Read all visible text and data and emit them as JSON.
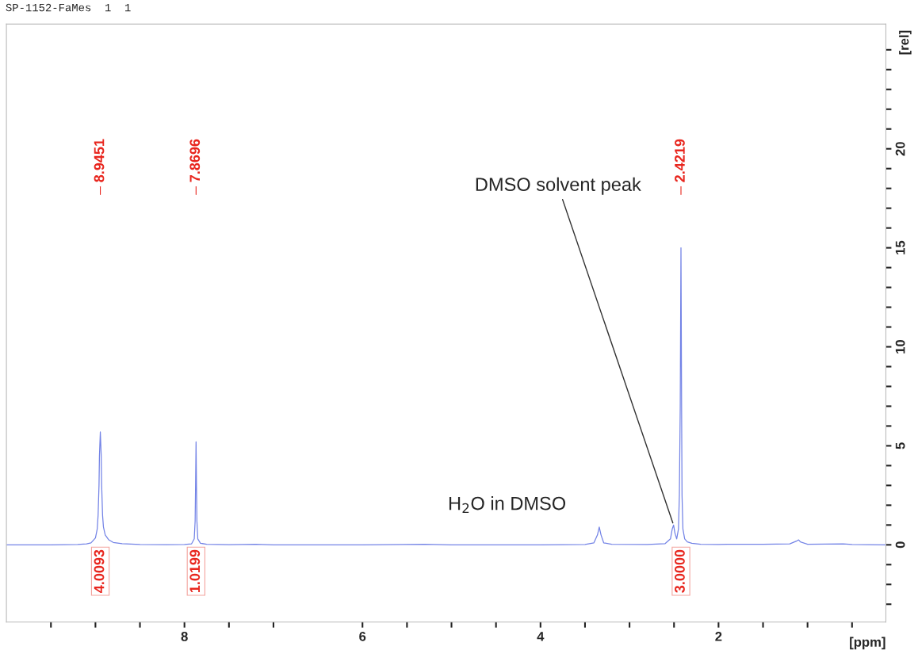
{
  "chart_data": {
    "type": "line",
    "title": "SP-1152-FaMes  1  1",
    "xlabel": "[ppm]",
    "ylabel": "[rel]",
    "x": [
      10.0,
      9.5,
      9.2,
      9.1,
      9.05,
      9.0,
      8.98,
      8.97,
      8.96,
      8.955,
      8.9451,
      8.935,
      8.93,
      8.92,
      8.91,
      8.89,
      8.85,
      8.8,
      8.7,
      8.5,
      8.2,
      8.0,
      7.92,
      7.89,
      7.88,
      7.875,
      7.8696,
      7.865,
      7.86,
      7.85,
      7.82,
      7.75,
      7.5,
      7.2,
      7.0,
      6.0,
      5.3,
      5.0,
      4.0,
      3.5,
      3.4,
      3.36,
      3.34,
      3.32,
      3.29,
      3.2,
      2.8,
      2.6,
      2.54,
      2.52,
      2.505,
      2.49,
      2.47,
      2.45,
      2.44,
      2.43,
      2.4219,
      2.415,
      2.41,
      2.4,
      2.38,
      2.35,
      2.3,
      2.2,
      2.0,
      1.9,
      1.5,
      1.2,
      1.12,
      1.1,
      1.08,
      1.0,
      0.6,
      0.5,
      0.12
    ],
    "series": [
      {
        "color": "#7383e6",
        "values": [
          0.0,
          0.0,
          0.02,
          0.05,
          0.1,
          0.35,
          0.8,
          1.5,
          3.0,
          4.5,
          5.7,
          4.5,
          3.0,
          1.5,
          0.9,
          0.5,
          0.25,
          0.12,
          0.06,
          0.02,
          0.01,
          0.02,
          0.05,
          0.3,
          1.2,
          3.0,
          5.2,
          3.0,
          1.2,
          0.3,
          0.08,
          0.03,
          0.01,
          0.03,
          0.0,
          0.0,
          0.03,
          0.0,
          0.0,
          0.02,
          0.1,
          0.5,
          0.9,
          0.5,
          0.1,
          0.03,
          0.02,
          0.06,
          0.3,
          0.8,
          1.0,
          0.6,
          0.3,
          0.8,
          2.5,
          7.0,
          15.0,
          7.0,
          2.5,
          0.8,
          0.3,
          0.15,
          0.08,
          0.03,
          0.02,
          0.03,
          0.03,
          0.05,
          0.2,
          0.25,
          0.15,
          0.03,
          0.05,
          0.02,
          0.0
        ]
      }
    ],
    "xlim": [
      10.0,
      0.12
    ],
    "xticks": [
      {
        "value": 9.5,
        "label": null
      },
      {
        "value": 9.0,
        "label": null
      },
      {
        "value": 8.5,
        "label": null
      },
      8,
      {
        "value": 7.5,
        "label": null
      },
      {
        "value": 7.0,
        "label": null
      },
      6,
      {
        "value": 5.5,
        "label": null
      },
      {
        "value": 5.0,
        "label": null
      },
      {
        "value": 4.5,
        "label": null
      },
      4,
      {
        "value": 3.5,
        "label": null
      },
      {
        "value": 3.0,
        "label": null
      },
      {
        "value": 2.5,
        "label": null
      },
      2,
      {
        "value": 1.5,
        "label": null
      },
      {
        "value": 1.0,
        "label": null
      },
      {
        "value": 0.5,
        "label": null
      }
    ],
    "ylim": [
      -3.9,
      26.3
    ],
    "yticks": [
      {
        "value": -3,
        "label": null
      },
      {
        "value": -2,
        "label": null
      },
      {
        "value": -1,
        "label": null
      },
      0,
      {
        "value": 1,
        "label": null
      },
      {
        "value": 2,
        "label": null
      },
      {
        "value": 3,
        "label": null
      },
      {
        "value": 4,
        "label": null
      },
      5,
      {
        "value": 6,
        "label": null
      },
      {
        "value": 7,
        "label": null
      },
      {
        "value": 8,
        "label": null
      },
      {
        "value": 9,
        "label": null
      },
      10,
      {
        "value": 11,
        "label": null
      },
      {
        "value": 12,
        "label": null
      },
      {
        "value": 13,
        "label": null
      },
      {
        "value": 14,
        "label": null
      },
      15,
      {
        "value": 16,
        "label": null
      },
      {
        "value": 17,
        "label": null
      },
      {
        "value": 18,
        "label": null
      },
      {
        "value": 19,
        "label": null
      },
      20,
      {
        "value": 21,
        "label": null
      },
      {
        "value": 22,
        "label": null
      },
      {
        "value": 23,
        "label": null
      },
      {
        "value": 24,
        "label": null
      },
      {
        "value": 25,
        "label": null
      }
    ],
    "annotations": [
      {
        "text": "8.9451",
        "x": 8.9451
      },
      {
        "text": "7.8696",
        "x": 7.8696
      },
      {
        "text": "2.4219",
        "x": 2.4219
      },
      "4.0093",
      "1.0199",
      "3.0000",
      {
        "text": "DMSO solvent peak",
        "x": 2.505,
        "y": 1.0
      },
      {
        "text": "H$_{2}$O in DMSO",
        "x": 3.34,
        "y": 0.9
      }
    ],
    "grid": false,
    "legend": false,
    "tick_labels": "xy"
  }
}
